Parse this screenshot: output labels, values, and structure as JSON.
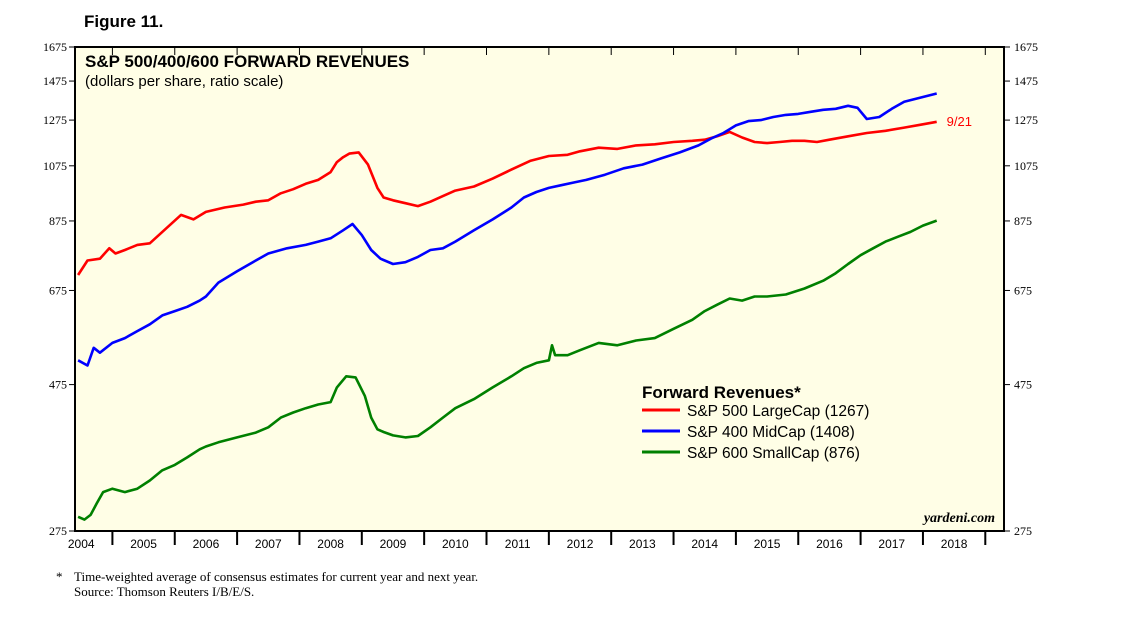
{
  "figure_label": "Figure 11.",
  "footnote": {
    "marker": "*",
    "line1": "Time-weighted average of consensus estimates for current year and next year.",
    "line2": "Source: Thomson Reuters I/B/E/S."
  },
  "watermark": "yardeni.com",
  "colors": {
    "plot_bg": "#fffee6",
    "sp500": "#ff0000",
    "sp400": "#0000ff",
    "sp600": "#008000"
  },
  "chart_data": {
    "type": "line",
    "title": "S&P 500/400/600 FORWARD REVENUES",
    "subtitle": "(dollars per share, ratio scale)",
    "y_scale": "log",
    "ylim": [
      275,
      1675
    ],
    "yticks": [
      275,
      475,
      675,
      875,
      1075,
      1275,
      1475,
      1675
    ],
    "ytick_labels": [
      "275",
      "475",
      "675",
      "875",
      "1075",
      "1275",
      "1475",
      "1675"
    ],
    "xlim": [
      2003.9,
      2018.8
    ],
    "xticks": [
      "2004",
      "2005",
      "2006",
      "2007",
      "2008",
      "2009",
      "2010",
      "2011",
      "2012",
      "2013",
      "2014",
      "2015",
      "2016",
      "2017",
      "2018"
    ],
    "legend": {
      "title": "Forward Revenues*",
      "position": "lower-right",
      "entries": [
        "S&P 500 LargeCap (1267)",
        "S&P 400 MidCap (1408)",
        "S&P 600 SmallCap (876)"
      ]
    },
    "annotation": {
      "text": "9/21",
      "x": 2017.72,
      "y": 1267,
      "series": "S&P 500 LargeCap"
    },
    "series": [
      {
        "name": "S&P 500 LargeCap",
        "x": [
          2003.95,
          2004.1,
          2004.3,
          2004.45,
          2004.55,
          2004.7,
          2004.9,
          2005.1,
          2005.3,
          2005.6,
          2005.8,
          2006.0,
          2006.3,
          2006.6,
          2006.8,
          2007.0,
          2007.2,
          2007.4,
          2007.6,
          2007.8,
          2008.0,
          2008.1,
          2008.2,
          2008.3,
          2008.45,
          2008.6,
          2008.75,
          2008.85,
          2009.0,
          2009.2,
          2009.4,
          2009.6,
          2009.8,
          2010.0,
          2010.3,
          2010.6,
          2010.9,
          2011.2,
          2011.5,
          2011.8,
          2012.0,
          2012.3,
          2012.6,
          2012.9,
          2013.2,
          2013.5,
          2013.8,
          2014.0,
          2014.2,
          2014.4,
          2014.6,
          2014.8,
          2015.0,
          2015.2,
          2015.4,
          2015.6,
          2015.8,
          2016.0,
          2016.3,
          2016.6,
          2016.9,
          2017.2,
          2017.5,
          2017.72
        ],
        "values": [
          715,
          755,
          760,
          790,
          775,
          785,
          800,
          805,
          840,
          895,
          880,
          905,
          920,
          930,
          940,
          945,
          970,
          985,
          1005,
          1020,
          1050,
          1090,
          1110,
          1125,
          1130,
          1080,
          990,
          955,
          945,
          935,
          925,
          940,
          960,
          980,
          995,
          1025,
          1060,
          1095,
          1115,
          1120,
          1135,
          1150,
          1145,
          1160,
          1165,
          1175,
          1180,
          1185,
          1200,
          1220,
          1195,
          1175,
          1170,
          1175,
          1180,
          1180,
          1175,
          1185,
          1200,
          1215,
          1225,
          1240,
          1255,
          1267
        ]
      },
      {
        "name": "S&P 400 MidCap",
        "x": [
          2003.95,
          2004.1,
          2004.2,
          2004.3,
          2004.5,
          2004.7,
          2004.9,
          2005.1,
          2005.3,
          2005.5,
          2005.7,
          2005.9,
          2006.0,
          2006.2,
          2006.5,
          2006.8,
          2007.0,
          2007.3,
          2007.6,
          2007.8,
          2008.0,
          2008.2,
          2008.35,
          2008.5,
          2008.65,
          2008.8,
          2009.0,
          2009.2,
          2009.4,
          2009.6,
          2009.8,
          2010.0,
          2010.3,
          2010.6,
          2010.9,
          2011.1,
          2011.3,
          2011.5,
          2011.7,
          2011.9,
          2012.1,
          2012.4,
          2012.7,
          2013.0,
          2013.3,
          2013.6,
          2013.9,
          2014.1,
          2014.3,
          2014.5,
          2014.7,
          2014.9,
          2015.1,
          2015.3,
          2015.5,
          2015.7,
          2015.9,
          2016.1,
          2016.3,
          2016.45,
          2016.6,
          2016.8,
          2017.0,
          2017.2,
          2017.5,
          2017.72
        ],
        "values": [
          520,
          510,
          545,
          535,
          555,
          565,
          580,
          595,
          615,
          625,
          635,
          650,
          660,
          695,
          725,
          755,
          775,
          790,
          800,
          810,
          820,
          845,
          865,
          830,
          785,
          760,
          745,
          750,
          765,
          785,
          790,
          810,
          845,
          880,
          920,
          955,
          975,
          990,
          1000,
          1010,
          1020,
          1040,
          1065,
          1080,
          1105,
          1130,
          1160,
          1190,
          1215,
          1250,
          1270,
          1275,
          1290,
          1300,
          1305,
          1315,
          1325,
          1330,
          1345,
          1335,
          1280,
          1290,
          1330,
          1365,
          1390,
          1408
        ]
      },
      {
        "name": "S&P 600 SmallCap",
        "x": [
          2003.95,
          2004.05,
          2004.15,
          2004.25,
          2004.35,
          2004.5,
          2004.7,
          2004.9,
          2005.1,
          2005.3,
          2005.5,
          2005.7,
          2005.9,
          2006.0,
          2006.2,
          2006.5,
          2006.8,
          2007.0,
          2007.2,
          2007.4,
          2007.6,
          2007.8,
          2008.0,
          2008.1,
          2008.25,
          2008.4,
          2008.55,
          2008.65,
          2008.75,
          2008.85,
          2009.0,
          2009.2,
          2009.4,
          2009.6,
          2009.8,
          2010.0,
          2010.3,
          2010.6,
          2010.9,
          2011.1,
          2011.3,
          2011.5,
          2011.55,
          2011.6,
          2011.8,
          2012.0,
          2012.3,
          2012.6,
          2012.9,
          2013.2,
          2013.5,
          2013.8,
          2014.0,
          2014.2,
          2014.4,
          2014.6,
          2014.8,
          2015.0,
          2015.3,
          2015.6,
          2015.9,
          2016.1,
          2016.3,
          2016.5,
          2016.7,
          2016.9,
          2017.1,
          2017.3,
          2017.5,
          2017.72
        ],
        "values": [
          290,
          287,
          292,
          305,
          318,
          322,
          318,
          322,
          332,
          345,
          352,
          362,
          373,
          377,
          383,
          390,
          397,
          405,
          420,
          428,
          435,
          441,
          445,
          470,
          490,
          488,
          455,
          420,
          402,
          398,
          393,
          390,
          392,
          405,
          420,
          435,
          450,
          470,
          490,
          505,
          515,
          520,
          550,
          530,
          530,
          540,
          555,
          550,
          560,
          565,
          585,
          605,
          625,
          640,
          655,
          650,
          660,
          660,
          665,
          680,
          700,
          720,
          745,
          770,
          790,
          810,
          825,
          840,
          860,
          876
        ]
      }
    ]
  }
}
